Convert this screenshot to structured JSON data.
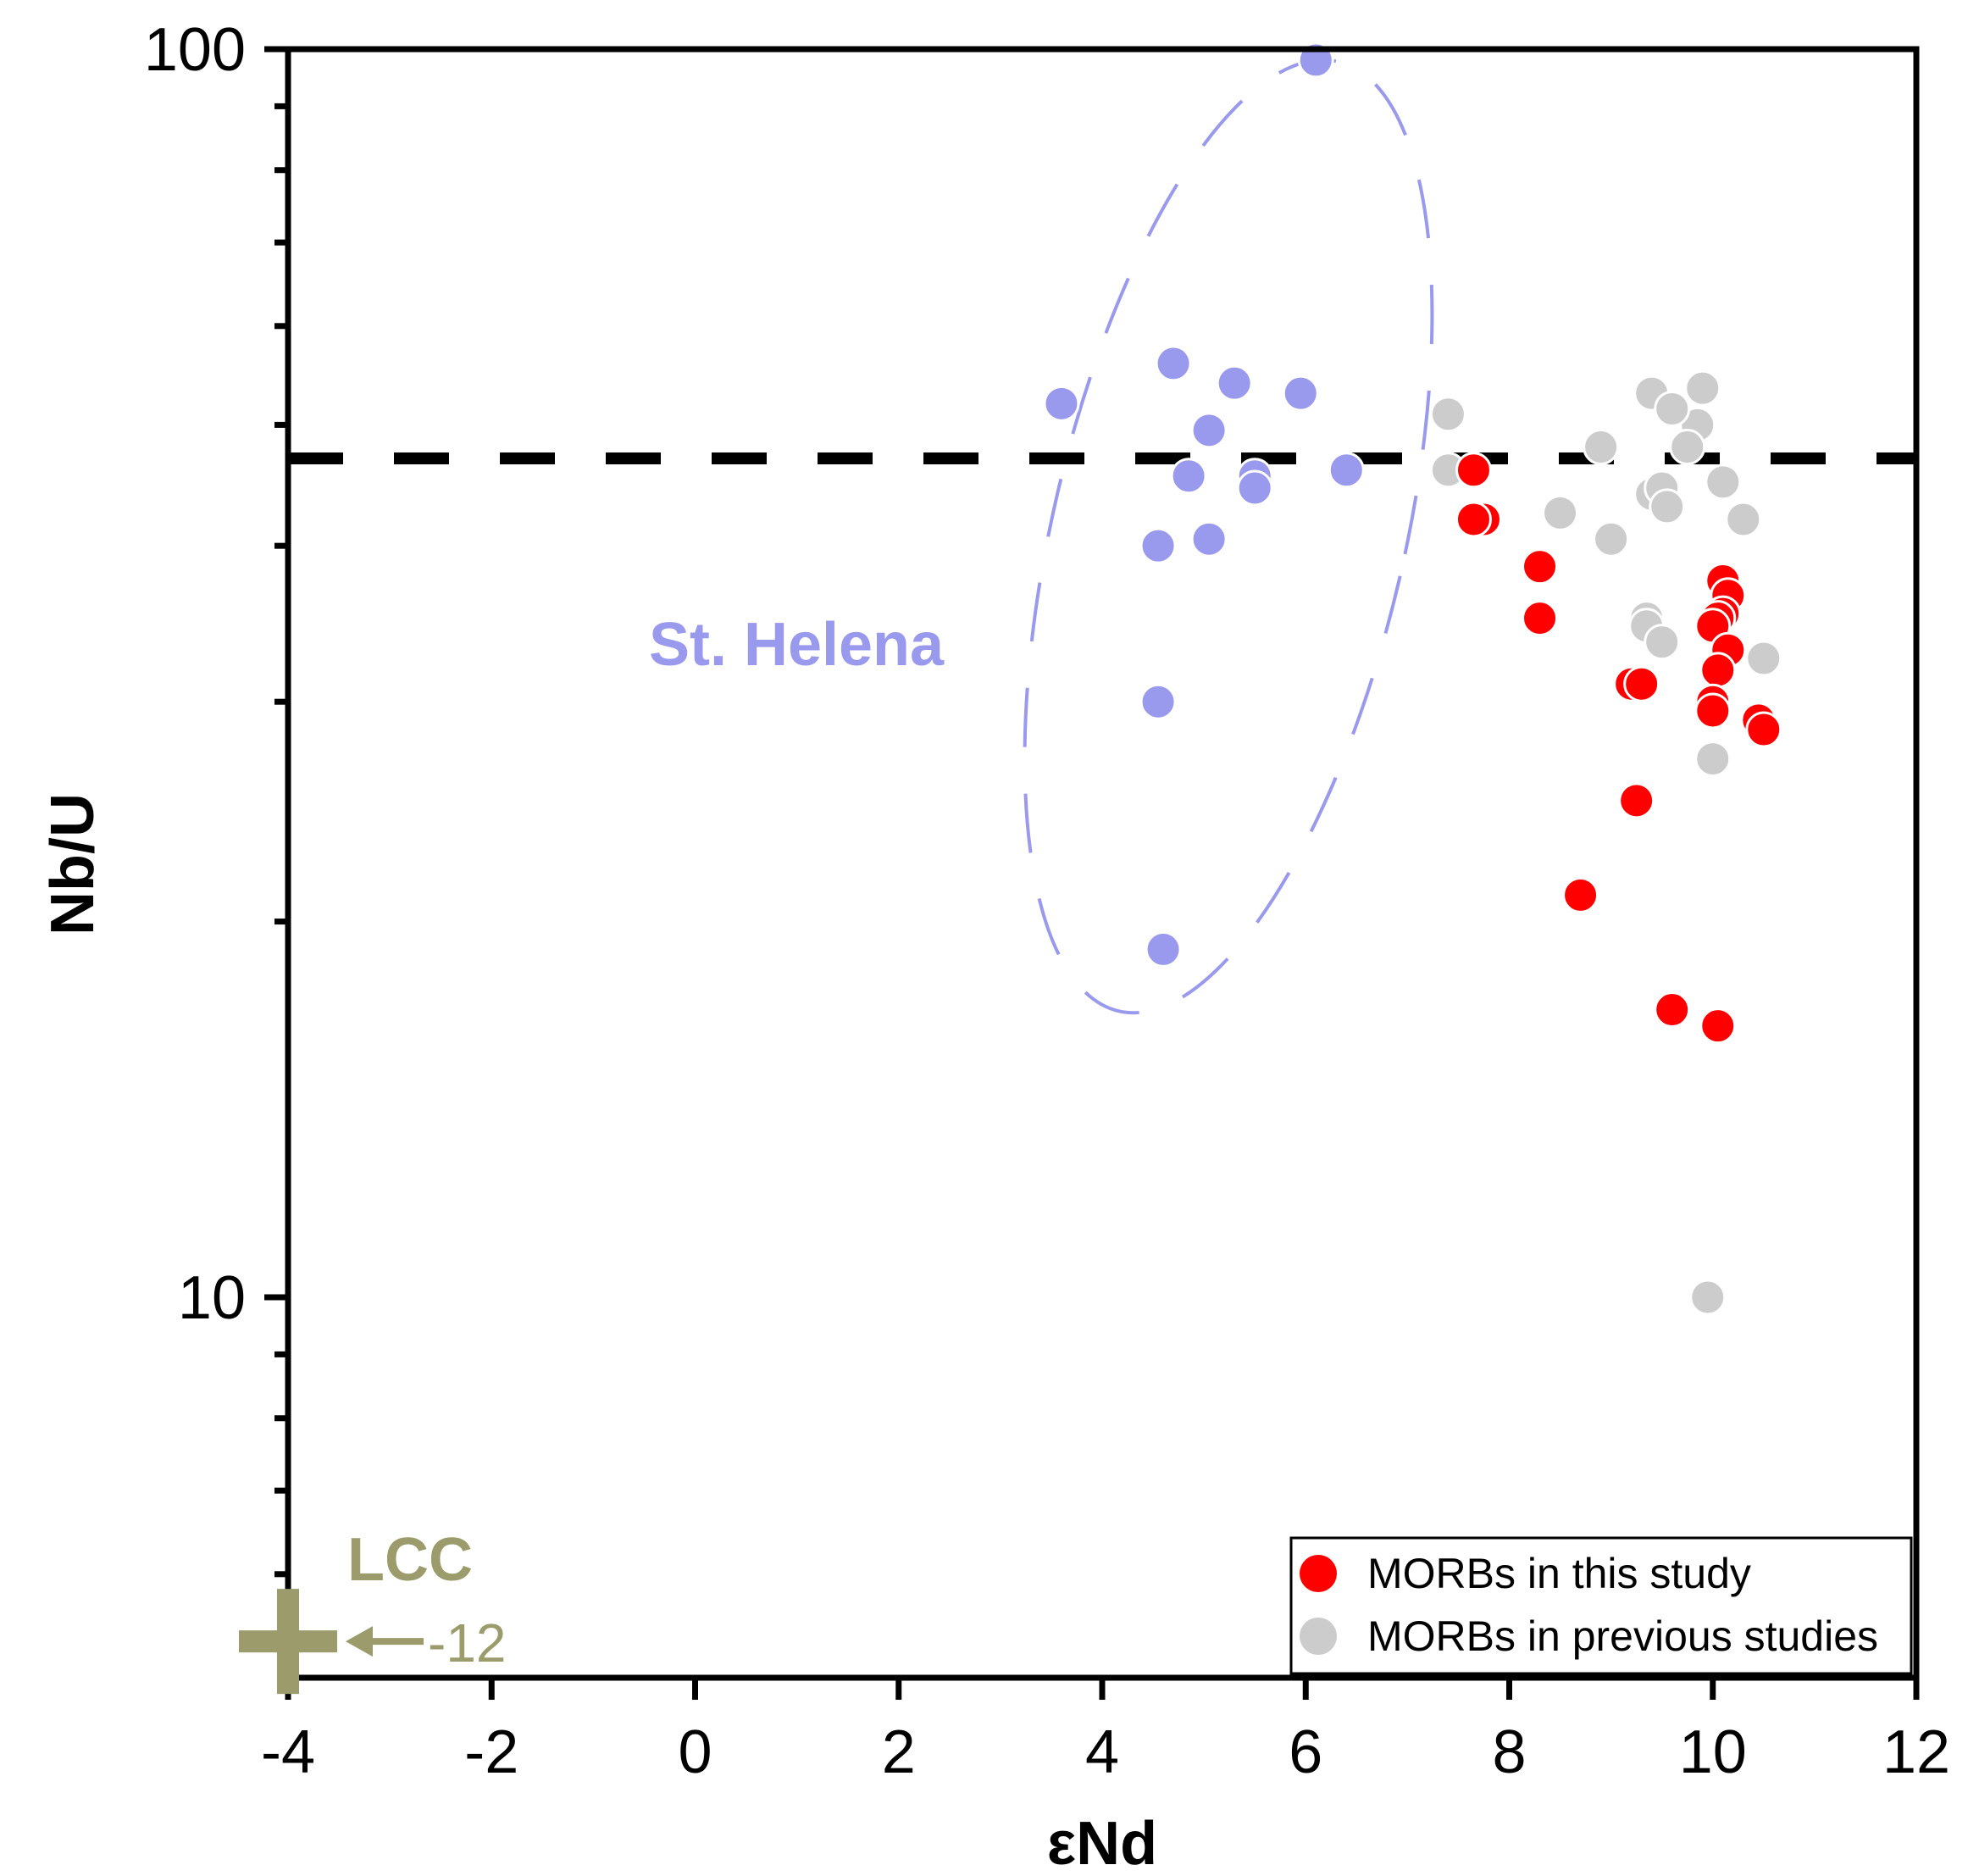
{
  "chart_data": {
    "type": "scatter",
    "title": "",
    "xlabel": "εNd",
    "ylabel": "Nb/U",
    "xlim": [
      -4,
      12
    ],
    "ylim": [
      5,
      100
    ],
    "yscale": "log",
    "grid": false,
    "x_ticks": [
      "-4",
      "-2",
      "0",
      "2",
      "4",
      "6",
      "8",
      "10",
      "12"
    ],
    "y_ticks": [
      "100",
      "10"
    ],
    "reference_line": {
      "y": 47,
      "style": "dashed",
      "color": "#000000"
    },
    "colors": {
      "this_study": "#ff0000",
      "previous": "#cccccc",
      "st_helena": "#9999ee",
      "lcc": "#9b9b6b",
      "axis": "#000000"
    },
    "legend": {
      "position": "bottom-right",
      "entries": [
        "MORBs in this study",
        "MORBs in previous studies"
      ]
    },
    "annotations": {
      "st_helena_label": "St. Helena",
      "lcc_label": "LCC",
      "lcc_value": "-12",
      "lcc_point": {
        "x": -4,
        "y": 5.3
      }
    },
    "series": [
      {
        "name": "MORBs in previous studies",
        "color": "#cccccc",
        "x": [
          7.4,
          7.4,
          8.9,
          8.5,
          9.0,
          9.4,
          9.5,
          9.85,
          9.4,
          9.55,
          9.9,
          10.1,
          10.3,
          9.6,
          9.75,
          9.35,
          9.35,
          9.5,
          10.5,
          10.0,
          9.95
        ],
        "y": [
          51,
          46,
          48,
          42.5,
          40.5,
          44,
          44.5,
          50,
          53,
          43,
          53.5,
          45,
          42,
          51.5,
          48,
          35,
          34.5,
          33.5,
          32.5,
          27,
          10
        ]
      },
      {
        "name": "MORBs in this study",
        "color": "#ff0000",
        "x": [
          7.65,
          7.75,
          7.65,
          8.3,
          8.3,
          9.2,
          9.3,
          9.25,
          8.7,
          9.6,
          10.05,
          10.1,
          10.15,
          10.1,
          10.05,
          10.0,
          10.15,
          10.05,
          10.0,
          10.0,
          10.45,
          10.5
        ],
        "y": [
          46,
          42,
          42,
          38.5,
          35,
          31,
          31,
          25,
          21,
          17,
          16.5,
          37.5,
          36.5,
          35.3,
          35,
          34.5,
          33,
          31.8,
          30,
          29.5,
          29,
          28.5
        ]
      },
      {
        "name": "St. Helena",
        "color": "#9999ee",
        "x": [
          3.6,
          4.7,
          5.3,
          5.95,
          5.05,
          4.85,
          5.5,
          5.5,
          6.4,
          4.55,
          5.05,
          4.55,
          4.6,
          6.1
        ],
        "y": [
          52,
          56,
          54,
          53,
          49.5,
          45.5,
          45.5,
          44.5,
          46,
          40,
          40.5,
          30,
          19,
          98
        ]
      }
    ]
  }
}
